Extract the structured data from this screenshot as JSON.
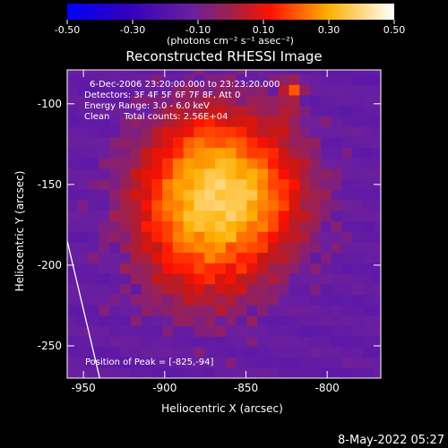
{
  "chart_data": {
    "type": "heatmap",
    "title": "Reconstructed RHESSI Image",
    "xlabel": "Heliocentric X (arcsec)",
    "ylabel": "Heliocentric Y (arcsec)",
    "xlim": [
      -960,
      -767
    ],
    "ylim": [
      -270,
      -79
    ],
    "x_ticks": [
      "-950",
      "-900",
      "-850",
      "-800"
    ],
    "x_tick_values": [
      -950,
      -900,
      -850,
      -800
    ],
    "y_ticks": [
      "-100",
      "-150",
      "-200",
      "-250"
    ],
    "y_tick_values": [
      -100,
      -150,
      -200,
      -250
    ],
    "colorbar": {
      "ticks": [
        "-0.50",
        "-0.30",
        "-0.10",
        "0.10",
        "0.30",
        "0.50"
      ],
      "tick_values": [
        -0.5,
        -0.3,
        -0.1,
        0.1,
        0.3,
        0.5
      ],
      "range": [
        -0.5,
        0.5
      ],
      "unit_label": "(photons cm⁻² s⁻¹ asec⁻²)"
    },
    "annotations": {
      "time": "6-Dec-2006 23:20:00.000 to 23:23:20.000",
      "detectors": "Detectors: 3F 4F 5F 6F 7F 8F, Att 0",
      "energy": "Energy Range: 3.0 - 6.0 keV",
      "clean": "Clean     Total counts: 2.56E+04",
      "peak": "Position of Peak = [-825,-94]"
    },
    "peak": {
      "x": -825,
      "y": -94
    },
    "limb_line": {
      "x": [
        -960,
        -940
      ],
      "y": [
        -185,
        -270
      ]
    },
    "grid": false,
    "legend": "none"
  },
  "footer": {
    "date": "8-May-2022 05:27"
  }
}
